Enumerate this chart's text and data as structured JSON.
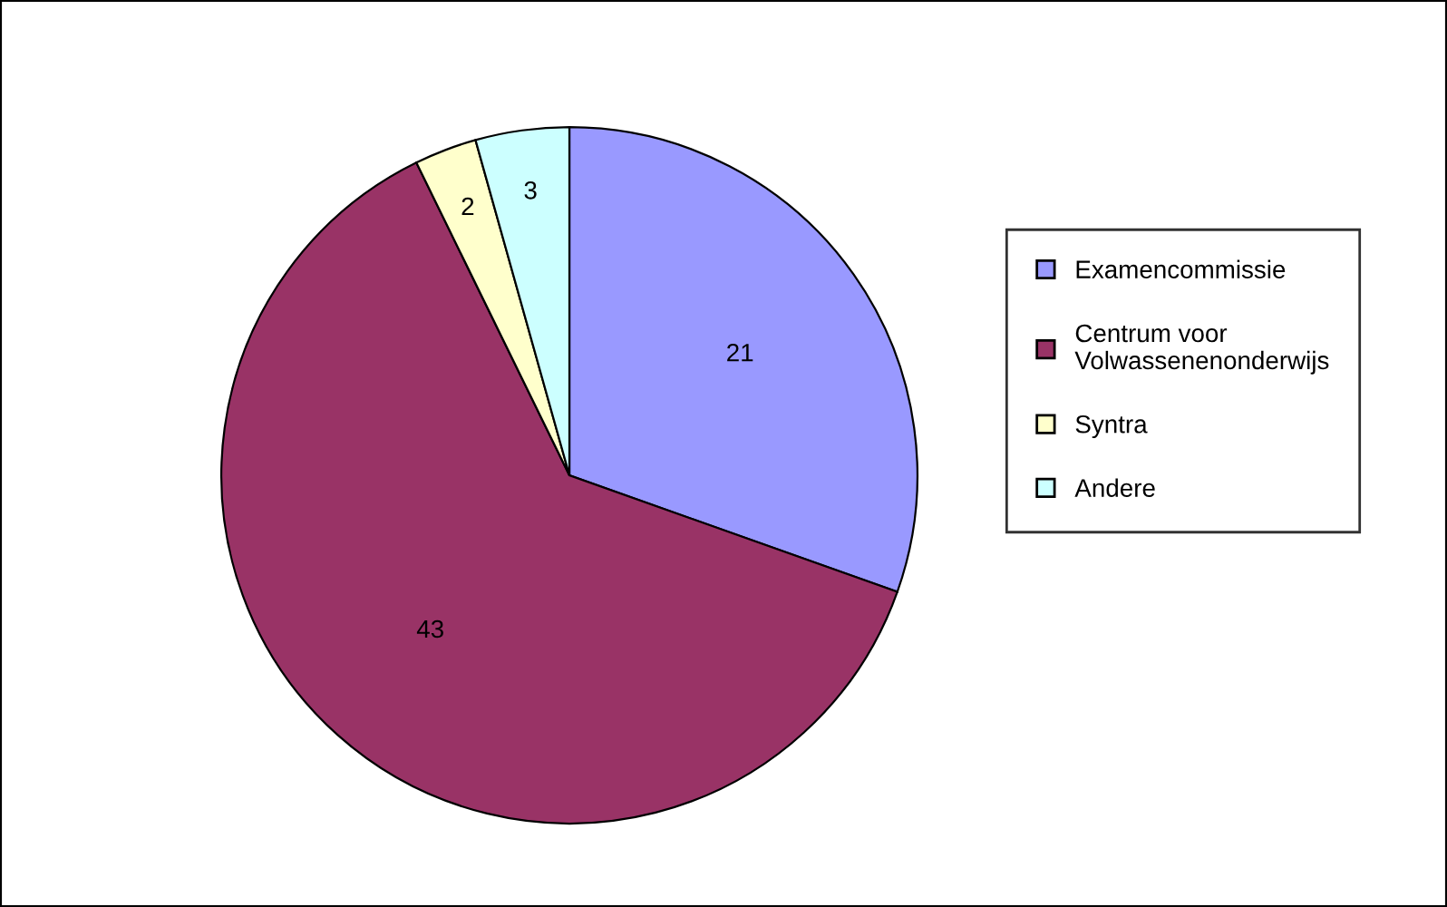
{
  "chart_data": {
    "type": "pie",
    "categories": [
      "Examencommissie",
      "Centrum voor\nVolwassenenonderwijs",
      "Syntra",
      "Andere"
    ],
    "values": [
      21,
      43,
      2,
      3
    ],
    "colors": [
      "#9999ff",
      "#993366",
      "#ffffcc",
      "#ccffff"
    ],
    "data_labels": true,
    "legend": "right"
  }
}
